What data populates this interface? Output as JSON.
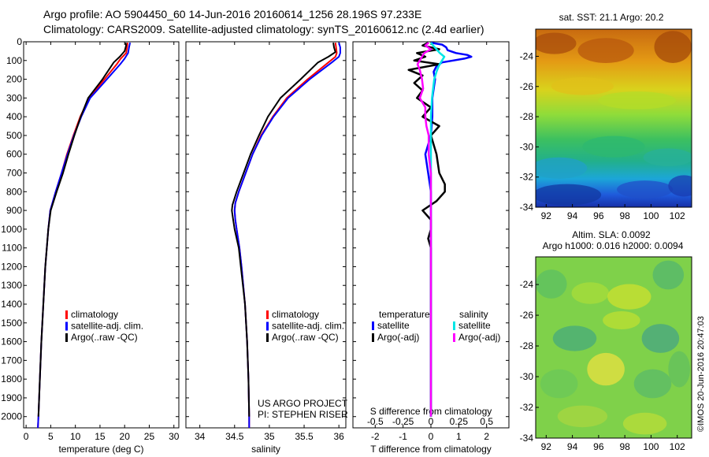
{
  "header": {
    "title_line1": "Argo profile: AO 5904450_60 14-Jun-2016 20160614_1256 28.196S 97.233E",
    "title_line2": "Climatology: CARS2009. Satellite-adjusted climatology: synTS_20160612.nc (2.4d earlier)"
  },
  "colors": {
    "climatology": "#ff0000",
    "satellite": "#0000ff",
    "argo": "#000000",
    "sal_satellite": "#00e6e6",
    "sal_argo": "#ff00ff"
  },
  "chart_data": [
    {
      "type": "line",
      "name": "temperature-profile",
      "xlabel": "temperature (deg C)",
      "ylabel": "",
      "xlim": [
        -0.5,
        31
      ],
      "ylim": [
        2060,
        0
      ],
      "xticks": [
        0,
        5,
        10,
        15,
        20,
        25,
        30
      ],
      "yticks": [
        0,
        100,
        200,
        300,
        400,
        500,
        600,
        700,
        800,
        900,
        1000,
        1100,
        1200,
        1300,
        1400,
        1500,
        1600,
        1700,
        1800,
        1900,
        2000
      ],
      "legend": [
        "climatology",
        "satellite-adj. clim.",
        "Argo(..raw -QC)"
      ],
      "legend_position": "lower-center",
      "series": [
        {
          "name": "climatology",
          "depth": [
            5,
            30,
            60,
            90,
            120,
            200,
            300,
            400,
            500,
            600,
            700,
            800,
            900,
            1000,
            1200,
            1400,
            1600,
            1800,
            2000,
            2060
          ],
          "values": [
            20.6,
            20.5,
            20.3,
            19.2,
            18.4,
            15.9,
            12.8,
            11.0,
            9.6,
            8.3,
            7.2,
            6.0,
            4.9,
            4.5,
            3.9,
            3.5,
            3.1,
            2.8,
            2.5,
            2.4
          ]
        },
        {
          "name": "satellite-adj. clim.",
          "depth": [
            5,
            30,
            60,
            90,
            120,
            200,
            300,
            400,
            500,
            600,
            700,
            800,
            900,
            1000,
            1200,
            1400,
            1600,
            1800,
            2000,
            2060
          ],
          "values": [
            21.1,
            20.9,
            20.7,
            20.0,
            19.1,
            16.4,
            13.0,
            11.2,
            9.7,
            8.4,
            7.2,
            6.0,
            4.9,
            4.5,
            3.9,
            3.5,
            3.1,
            2.8,
            2.5,
            2.4
          ]
        },
        {
          "name": "Argo(..raw -QC)",
          "depth": [
            5,
            20,
            50,
            80,
            110,
            200,
            300,
            400,
            500,
            600,
            700,
            800,
            900,
            1000,
            1200,
            1400,
            1600,
            1800,
            2000
          ],
          "values": [
            20.2,
            20.3,
            20.0,
            19.0,
            17.8,
            15.5,
            12.6,
            11.1,
            9.8,
            8.6,
            7.5,
            6.2,
            5.0,
            4.5,
            3.9,
            3.5,
            3.1,
            2.8,
            2.5
          ]
        }
      ]
    },
    {
      "type": "line",
      "name": "salinity-profile",
      "xlabel": "salinity",
      "ylabel": "",
      "xlim": [
        33.8,
        36.1
      ],
      "ylim": [
        2060,
        0
      ],
      "xticks": [
        34,
        34.5,
        35,
        35.5,
        36
      ],
      "legend": [
        "climatology",
        "satellite-adj. clim.",
        "Argo(..raw -QC)"
      ],
      "legend_position": "lower-right",
      "series": [
        {
          "name": "climatology",
          "depth": [
            5,
            30,
            60,
            80,
            110,
            200,
            300,
            400,
            500,
            600,
            700,
            800,
            860,
            900,
            950,
            1000,
            1100,
            1200,
            1400,
            1600,
            1800,
            2000,
            2060
          ],
          "values": [
            35.95,
            35.96,
            35.97,
            35.95,
            35.85,
            35.55,
            35.25,
            35.05,
            34.88,
            34.76,
            34.66,
            34.56,
            34.51,
            34.5,
            34.51,
            34.53,
            34.57,
            34.6,
            34.65,
            34.68,
            34.7,
            34.71,
            34.71
          ]
        },
        {
          "name": "satellite-adj. clim.",
          "depth": [
            5,
            30,
            60,
            80,
            110,
            200,
            300,
            400,
            500,
            600,
            700,
            800,
            860,
            900,
            950,
            1000,
            1100,
            1200,
            1400,
            1600,
            1800,
            2000,
            2060
          ],
          "values": [
            36.0,
            36.02,
            36.02,
            36.0,
            35.9,
            35.58,
            35.27,
            35.06,
            34.89,
            34.76,
            34.66,
            34.56,
            34.51,
            34.5,
            34.51,
            34.53,
            34.57,
            34.6,
            34.65,
            34.68,
            34.7,
            34.71,
            34.71
          ]
        },
        {
          "name": "Argo(..raw -QC)",
          "depth": [
            5,
            30,
            55,
            80,
            110,
            200,
            300,
            400,
            500,
            600,
            700,
            800,
            870,
            900,
            950,
            1000,
            1100,
            1200,
            1400,
            1600,
            1800,
            2000
          ],
          "values": [
            35.92,
            35.93,
            35.95,
            35.85,
            35.7,
            35.45,
            35.16,
            34.98,
            34.85,
            34.73,
            34.63,
            34.53,
            34.47,
            34.46,
            34.48,
            34.5,
            34.56,
            34.59,
            34.65,
            34.68,
            34.7,
            34.71
          ]
        }
      ],
      "annotation": [
        "US ARGO PROJECT",
        "PI: STEPHEN RISER"
      ]
    },
    {
      "type": "line",
      "name": "difference-from-climatology",
      "xlabel": "T difference from climatology",
      "xlabel_top": "S difference from climatology",
      "xlim": [
        -2.8,
        2.8
      ],
      "ylim": [
        2060,
        0
      ],
      "xticks": [
        -2,
        -1,
        0,
        1,
        2
      ],
      "s_ticks": [
        "-0.5",
        "-0.25",
        "0",
        "0.25",
        "0.5"
      ],
      "legend_headers": [
        "temperature",
        "salinity"
      ],
      "legend": [
        "satellite",
        "Argo(-adj)",
        "satellite",
        "Argo(-adj)"
      ],
      "series": [
        {
          "name": "temperature satellite",
          "depth": [
            5,
            15,
            30,
            45,
            60,
            70,
            80,
            90,
            100,
            110,
            130,
            160,
            200,
            300,
            400,
            500,
            600,
            700,
            800,
            900,
            1000,
            1200,
            1400,
            1600,
            1800,
            2000
          ],
          "values": [
            0.0,
            0.4,
            0.55,
            0.6,
            0.9,
            1.3,
            1.45,
            1.2,
            0.8,
            0.4,
            0.2,
            0.1,
            0.15,
            0.05,
            0.05,
            0.0,
            -0.2,
            -0.1,
            0.0,
            0.0,
            0.0,
            0.0,
            0.0,
            0.0,
            0.0,
            0.0
          ]
        },
        {
          "name": "temperature Argo(-adj)",
          "depth": [
            5,
            20,
            40,
            60,
            80,
            100,
            120,
            150,
            180,
            220,
            260,
            300,
            350,
            400,
            450,
            500,
            600,
            700,
            760,
            800,
            850,
            900,
            950,
            1000,
            1050,
            1100,
            1200,
            1400,
            1600,
            1800,
            2000
          ],
          "values": [
            -0.1,
            -0.3,
            0.3,
            -0.5,
            -0.2,
            -0.6,
            0.3,
            -0.8,
            -0.3,
            -0.6,
            -0.3,
            -0.5,
            0.0,
            -0.3,
            0.3,
            0.0,
            0.2,
            0.3,
            0.5,
            0.5,
            0.2,
            -0.3,
            0.0,
            0.0,
            -0.1,
            0.0,
            0.0,
            0.0,
            0.0,
            0.0,
            0.0
          ]
        },
        {
          "name": "salinity satellite",
          "depth": [
            5,
            20,
            40,
            60,
            80,
            100,
            130,
            160,
            200,
            300,
            400,
            500,
            700,
            900,
            1200,
            1500,
            1800,
            2000
          ],
          "values": [
            0.0,
            0.02,
            0.05,
            0.08,
            0.12,
            0.1,
            0.07,
            0.05,
            0.03,
            0.01,
            0.0,
            0.0,
            0.0,
            0.0,
            0.0,
            0.0,
            0.0,
            0.0
          ]
        },
        {
          "name": "salinity Argo(-adj)",
          "depth": [
            5,
            20,
            40,
            60,
            80,
            100,
            120,
            150,
            200,
            250,
            300,
            350,
            400,
            450,
            500,
            600,
            700,
            800,
            900,
            1000,
            1200,
            1400,
            1600,
            1800,
            2000
          ],
          "values": [
            -0.02,
            -0.05,
            0.0,
            -0.06,
            -0.08,
            -0.1,
            -0.12,
            -0.1,
            -0.08,
            -0.07,
            -0.1,
            -0.05,
            -0.05,
            -0.04,
            -0.02,
            -0.02,
            0.0,
            0.0,
            0.0,
            0.0,
            0.0,
            0.0,
            0.0,
            0.0,
            0.0
          ]
        }
      ]
    },
    {
      "type": "heatmap",
      "name": "sst-map",
      "title": "sat. SST: 21.1  Argo: 20.2",
      "xticks": [
        92,
        94,
        96,
        98,
        100,
        102
      ],
      "yticks": [
        -24,
        -26,
        -28,
        -30,
        -32,
        -34
      ],
      "xlim": [
        91.2,
        103.1
      ],
      "ylim": [
        -34,
        -22.2
      ]
    },
    {
      "type": "heatmap",
      "name": "sla-map",
      "title_line1": "Altim. SLA: 0.0092",
      "title_line2": "Argo h1000: 0.016 h2000: 0.0094",
      "xticks": [
        92,
        94,
        96,
        98,
        100,
        102
      ],
      "yticks": [
        -24,
        -26,
        -28,
        -30,
        -32,
        -34
      ],
      "xlim": [
        91.2,
        103.1
      ],
      "ylim": [
        -34,
        -22.2
      ]
    }
  ],
  "footer": {
    "stamp": "©IMOS 20-Jun-2016 20:47:03"
  }
}
